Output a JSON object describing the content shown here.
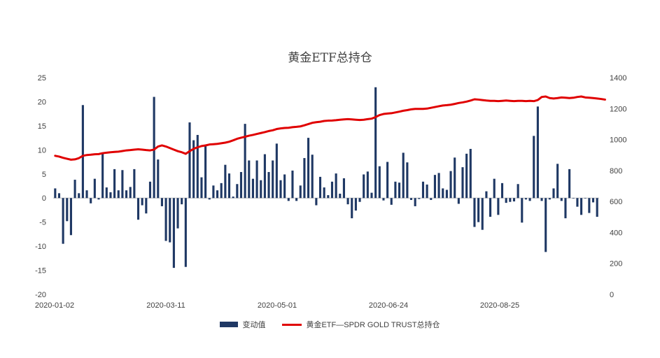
{
  "chart_data": {
    "type": "bar+line",
    "title": "黄金ETF总持仓",
    "colors": {
      "bar": "#1f3864",
      "line": "#e00000"
    },
    "x_tick_labels": [
      "2020-01-02",
      "2020-03-11",
      "2020-05-01",
      "2020-06-24",
      "2020-08-25"
    ],
    "y_left": {
      "range": [
        -20,
        25
      ],
      "ticks": [
        "-20",
        "-15",
        "-10",
        "-5",
        "0",
        "5",
        "10",
        "15",
        "20",
        "25"
      ]
    },
    "y_right": {
      "range": [
        0,
        1400
      ],
      "ticks": [
        "0",
        "200",
        "400",
        "600",
        "800",
        "1000",
        "1200",
        "1400"
      ]
    },
    "legend_position": "bottom",
    "series": [
      {
        "name": "变动值",
        "type": "bar",
        "axis": "left",
        "values": [
          2,
          1,
          -9.5,
          -4.8,
          -7.7,
          3.8,
          1,
          19.3,
          1.6,
          -1.1,
          4,
          -0.3,
          9.3,
          2.2,
          1.2,
          6,
          1.6,
          5.8,
          1.6,
          2.3,
          6,
          -4.5,
          -1.5,
          -3.2,
          3.4,
          21,
          8,
          -1.7,
          -8.9,
          -9.2,
          -14.5,
          -6.3,
          -1.3,
          -14.3,
          15.7,
          12,
          13.1,
          4.3,
          10.8,
          -0.3,
          2.6,
          1.6,
          3.1,
          6.9,
          5.1,
          0.3,
          2.9,
          5.4,
          15.4,
          7.8,
          4,
          7.8,
          3.7,
          9.1,
          5.4,
          7.8,
          11.3,
          3.7,
          4.9,
          -0.6,
          5.7,
          -0.6,
          2.6,
          8.3,
          12.5,
          9,
          -1.5,
          4.4,
          2.2,
          0.6,
          3.4,
          5.1,
          0.9,
          4.1,
          -1.3,
          -4.2,
          -2.6,
          -0.8,
          4.9,
          5.5,
          1.1,
          23,
          6.6,
          -0.5,
          7.5,
          -1.4,
          3.4,
          3.2,
          9.4,
          7.4,
          -0.4,
          -1.7,
          -0.2,
          3.4,
          2.8,
          -0.4,
          4.8,
          5.2,
          2,
          1.7,
          5.6,
          8.4,
          -1.2,
          6.4,
          9.2,
          10.2,
          -6,
          -5,
          -6.6,
          1.4,
          -3.9,
          4,
          -3.5,
          3.1,
          -1,
          -0.8,
          -0.7,
          2.9,
          -5.1,
          -0.3,
          -0.6,
          12.9,
          19,
          -0.6,
          -11.2,
          -0.3,
          2,
          7.1,
          -0.6,
          -4.2,
          6,
          -0.1,
          -1.8,
          -3.5,
          -0.1,
          -3.1,
          -0.9,
          -3.9
        ]
      },
      {
        "name": "黄金ETF—SPDR GOLD TRUST总持仓",
        "type": "line",
        "axis": "right",
        "values": [
          895,
          890,
          882,
          876,
          870,
          872,
          880,
          895,
          900,
          902,
          905,
          906,
          912,
          915,
          918,
          920,
          922,
          926,
          930,
          932,
          935,
          937,
          935,
          932,
          930,
          935,
          955,
          962,
          955,
          945,
          935,
          925,
          918,
          908,
          925,
          940,
          950,
          958,
          962,
          968,
          970,
          972,
          976,
          980,
          986,
          995,
          1005,
          1012,
          1018,
          1025,
          1030,
          1036,
          1042,
          1048,
          1055,
          1060,
          1068,
          1072,
          1075,
          1076,
          1080,
          1082,
          1085,
          1092,
          1100,
          1108,
          1112,
          1115,
          1120,
          1122,
          1123,
          1125,
          1128,
          1130,
          1132,
          1130,
          1128,
          1126,
          1128,
          1132,
          1135,
          1145,
          1158,
          1165,
          1168,
          1170,
          1175,
          1180,
          1186,
          1190,
          1195,
          1198,
          1198,
          1198,
          1200,
          1205,
          1210,
          1215,
          1220,
          1222,
          1225,
          1230,
          1236,
          1240,
          1245,
          1252,
          1260,
          1258,
          1255,
          1252,
          1250,
          1250,
          1248,
          1250,
          1252,
          1250,
          1248,
          1250,
          1250,
          1248,
          1250,
          1248,
          1255,
          1275,
          1278,
          1268,
          1265,
          1268,
          1272,
          1270,
          1268,
          1270,
          1275,
          1278,
          1272,
          1270,
          1268,
          1265,
          1262,
          1258
        ]
      }
    ]
  }
}
